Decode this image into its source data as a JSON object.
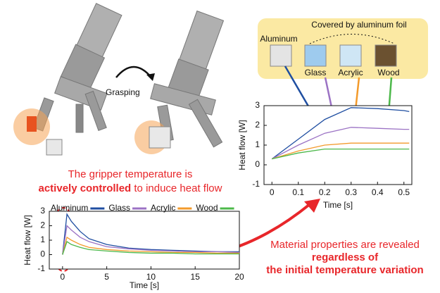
{
  "illustration": {
    "action": "Grasping",
    "caption_line1": "The gripper temperature is",
    "caption_bold": "actively controlled",
    "caption_rest": "to induce heat flow",
    "materials_heading": "Covered by aluminum foil",
    "materials": [
      "Aluminum",
      "Glass",
      "Acrylic",
      "Wood"
    ],
    "result_line1": "Material properties are revealed",
    "result_bold1": "regardless of",
    "result_bold2": "the initial temperature variation"
  },
  "chart_data": [
    {
      "type": "line",
      "xlabel": "Time [s]",
      "ylabel": "Heat flow [W]",
      "xlim": [
        -0.03,
        0.53
      ],
      "xticks": [
        0,
        0.1,
        0.2,
        0.3,
        0.4,
        0.5
      ],
      "ylim": [
        -1,
        3
      ],
      "yticks": [
        -1,
        0,
        1,
        2,
        3
      ],
      "x": [
        0,
        0.1,
        0.2,
        0.3,
        0.4,
        0.5,
        0.52
      ],
      "series": [
        {
          "color": "#1f4ea1",
          "values": [
            0.3,
            1.3,
            2.3,
            2.9,
            2.85,
            2.75,
            2.7
          ]
        },
        {
          "color": "#9b72c4",
          "values": [
            0.3,
            1.0,
            1.6,
            1.9,
            1.85,
            1.8,
            1.8
          ]
        },
        {
          "color": "#f39a2b",
          "values": [
            0.3,
            0.7,
            1.0,
            1.1,
            1.1,
            1.1,
            1.1
          ]
        },
        {
          "color": "#4cb84a",
          "values": [
            0.3,
            0.6,
            0.8,
            0.8,
            0.8,
            0.8,
            0.8
          ]
        }
      ]
    },
    {
      "type": "line",
      "xlabel": "Time [s]",
      "ylabel": "Heat flow [W]",
      "xlim": [
        -1.5,
        20
      ],
      "xticks": [
        0,
        5,
        10,
        15,
        20
      ],
      "ylim": [
        -1,
        3
      ],
      "yticks": [
        -1,
        0,
        1,
        2,
        3
      ],
      "x": [
        0,
        0.5,
        1,
        2,
        3,
        5,
        7.5,
        10,
        12.5,
        15,
        17.5,
        20
      ],
      "series": [
        {
          "name": "Aluminum",
          "color": "#1f4ea1",
          "values": [
            0,
            2.8,
            2.3,
            1.6,
            1.1,
            0.7,
            0.45,
            0.35,
            0.3,
            0.25,
            0.2,
            0.2
          ]
        },
        {
          "name": "Glass",
          "color": "#9b72c4",
          "values": [
            0,
            2.0,
            1.7,
            1.2,
            0.9,
            0.55,
            0.4,
            0.3,
            0.25,
            0.2,
            0.2,
            0.15
          ]
        },
        {
          "name": "Acrylic",
          "color": "#f39a2b",
          "values": [
            0,
            1.2,
            1.0,
            0.7,
            0.5,
            0.35,
            0.25,
            0.2,
            0.15,
            0.15,
            0.1,
            0.1
          ]
        },
        {
          "name": "Wood",
          "color": "#4cb84a",
          "values": [
            0,
            0.9,
            0.7,
            0.5,
            0.35,
            0.25,
            0.15,
            0.1,
            0.1,
            0.05,
            0.05,
            0.05
          ]
        }
      ]
    }
  ]
}
